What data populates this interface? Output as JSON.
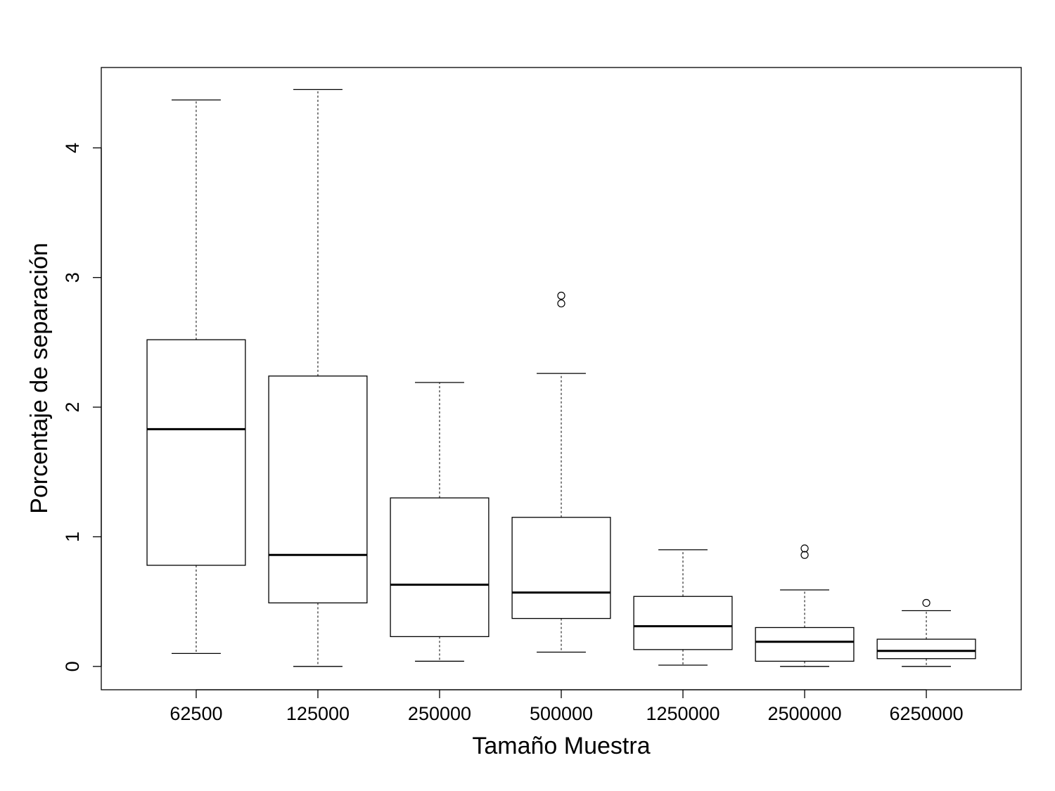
{
  "chart_data": {
    "type": "boxplot",
    "xlabel": "Tamaño Muestra",
    "ylabel": "Porcentaje de separación",
    "categories": [
      "62500",
      "125000",
      "250000",
      "500000",
      "1250000",
      "2500000",
      "6250000"
    ],
    "ylim": [
      -0.18,
      4.62
    ],
    "yticks": [
      "0",
      "1",
      "2",
      "3",
      "4"
    ],
    "grid": false,
    "boxes": [
      {
        "whisker_low": 0.1,
        "q1": 0.78,
        "median": 1.83,
        "q3": 2.52,
        "whisker_high": 4.37,
        "outliers": []
      },
      {
        "whisker_low": 0.0,
        "q1": 0.49,
        "median": 0.86,
        "q3": 2.24,
        "whisker_high": 4.45,
        "outliers": []
      },
      {
        "whisker_low": 0.04,
        "q1": 0.23,
        "median": 0.63,
        "q3": 1.3,
        "whisker_high": 2.19,
        "outliers": []
      },
      {
        "whisker_low": 0.11,
        "q1": 0.37,
        "median": 0.57,
        "q3": 1.15,
        "whisker_high": 2.26,
        "outliers": [
          2.8,
          2.86
        ]
      },
      {
        "whisker_low": 0.01,
        "q1": 0.13,
        "median": 0.31,
        "q3": 0.54,
        "whisker_high": 0.9,
        "outliers": []
      },
      {
        "whisker_low": 0.0,
        "q1": 0.04,
        "median": 0.19,
        "q3": 0.3,
        "whisker_high": 0.59,
        "outliers": [
          0.86,
          0.91
        ]
      },
      {
        "whisker_low": 0.0,
        "q1": 0.06,
        "median": 0.12,
        "q3": 0.21,
        "whisker_high": 0.43,
        "outliers": [
          0.49
        ]
      }
    ]
  }
}
